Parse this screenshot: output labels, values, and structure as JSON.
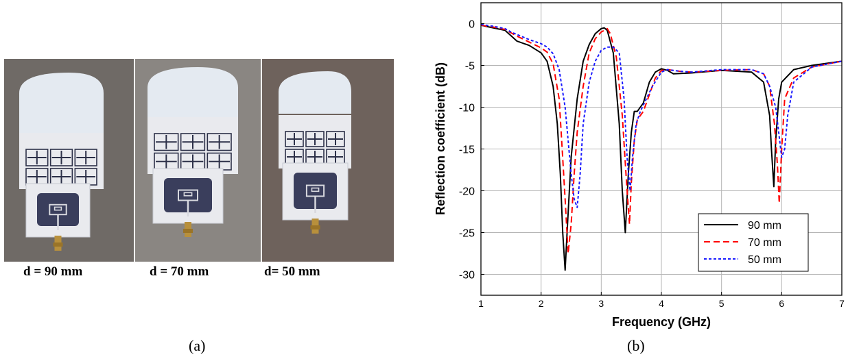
{
  "panel_a": {
    "label": "(a)",
    "photos": [
      {
        "caption": "d = 90 mm",
        "bg": "#6f6a66"
      },
      {
        "caption": "d = 70 mm",
        "bg": "#8a8682"
      },
      {
        "caption": "d= 50 mm",
        "bg": "#6e625c"
      }
    ],
    "colors": {
      "foam": "#e4eaf1",
      "substrate": "#e9eaee",
      "trace": "#2c3048",
      "patch": "#3a3e5c",
      "connector": "#b8903c"
    }
  },
  "panel_b": {
    "label": "(b)"
  },
  "chart_data": {
    "type": "line",
    "title": "",
    "xlabel": "Frequency (GHz)",
    "ylabel": "Reflection coefficient (dB)",
    "xlim": [
      1,
      7
    ],
    "ylim": [
      -32.5,
      2.5
    ],
    "xticks": [
      1,
      2,
      3,
      4,
      5,
      6,
      7
    ],
    "yticks": [
      0,
      -5,
      -10,
      -15,
      -20,
      -25,
      -30
    ],
    "xtick_labels": [
      "1",
      "2",
      "3",
      "4",
      "5",
      "6",
      "7"
    ],
    "ytick_labels": [
      "0",
      "-5",
      "-10",
      "-15",
      "-20",
      "-25",
      "-30"
    ],
    "grid": true,
    "legend_position": "bottom-right",
    "series": [
      {
        "name": "90 mm",
        "color": "#000000",
        "dash": "solid",
        "x": [
          1.0,
          1.2,
          1.4,
          1.6,
          1.8,
          2.0,
          2.1,
          2.2,
          2.27,
          2.32,
          2.36,
          2.4,
          2.44,
          2.5,
          2.6,
          2.7,
          2.8,
          2.9,
          3.0,
          3.05,
          3.1,
          3.2,
          3.3,
          3.35,
          3.4,
          3.45,
          3.5,
          3.55,
          3.6,
          3.7,
          3.8,
          3.9,
          4.0,
          4.1,
          4.2,
          4.5,
          5.0,
          5.5,
          5.7,
          5.8,
          5.83,
          5.87,
          5.9,
          5.95,
          6.0,
          6.2,
          6.5,
          7.0
        ],
        "y": [
          -0.2,
          -0.5,
          -0.8,
          -2.1,
          -2.6,
          -3.5,
          -4.5,
          -7.5,
          -12.0,
          -18.0,
          -25.0,
          -29.5,
          -24.0,
          -16.0,
          -9.0,
          -4.5,
          -2.5,
          -1.2,
          -0.6,
          -0.5,
          -0.8,
          -3.5,
          -12.0,
          -20.0,
          -25.0,
          -18.0,
          -13.0,
          -10.5,
          -10.5,
          -9.5,
          -7.0,
          -5.8,
          -5.4,
          -5.6,
          -6.0,
          -5.9,
          -5.6,
          -5.8,
          -7.0,
          -11.0,
          -15.0,
          -19.5,
          -14.0,
          -9.0,
          -7.0,
          -5.5,
          -5.0,
          -4.5
        ]
      },
      {
        "name": "70 mm",
        "color": "#ff0000",
        "dash": "long",
        "x": [
          1.0,
          1.2,
          1.4,
          1.6,
          1.8,
          2.0,
          2.1,
          2.2,
          2.3,
          2.35,
          2.4,
          2.45,
          2.5,
          2.55,
          2.6,
          2.7,
          2.8,
          2.9,
          3.0,
          3.1,
          3.15,
          3.25,
          3.35,
          3.42,
          3.47,
          3.5,
          3.55,
          3.6,
          3.7,
          3.8,
          3.9,
          4.0,
          4.1,
          4.3,
          4.5,
          5.0,
          5.5,
          5.7,
          5.8,
          5.88,
          5.93,
          5.96,
          6.0,
          6.05,
          6.2,
          6.5,
          7.0
        ],
        "y": [
          -0.2,
          -0.4,
          -0.7,
          -1.5,
          -2.2,
          -2.9,
          -3.4,
          -4.8,
          -9.0,
          -15.0,
          -21.0,
          -27.5,
          -24.0,
          -18.0,
          -13.0,
          -7.5,
          -3.5,
          -1.8,
          -1.0,
          -0.6,
          -1.2,
          -4.0,
          -11.0,
          -19.0,
          -24.0,
          -19.0,
          -14.0,
          -11.5,
          -10.5,
          -8.5,
          -6.5,
          -5.6,
          -5.5,
          -5.7,
          -5.8,
          -5.6,
          -5.5,
          -6.0,
          -7.5,
          -12.0,
          -17.0,
          -21.5,
          -15.0,
          -9.0,
          -6.5,
          -5.2,
          -4.5
        ]
      },
      {
        "name": "50 mm",
        "color": "#1a1aff",
        "dash": "short",
        "x": [
          1.0,
          1.2,
          1.4,
          1.5,
          1.6,
          1.8,
          2.0,
          2.1,
          2.2,
          2.3,
          2.4,
          2.45,
          2.5,
          2.55,
          2.6,
          2.65,
          2.7,
          2.8,
          2.9,
          3.0,
          3.1,
          3.2,
          3.3,
          3.38,
          3.43,
          3.48,
          3.52,
          3.58,
          3.65,
          3.75,
          3.85,
          4.0,
          4.1,
          4.3,
          4.5,
          5.0,
          5.5,
          5.7,
          5.8,
          5.9,
          5.95,
          6.0,
          6.05,
          6.1,
          6.2,
          6.5,
          7.0
        ],
        "y": [
          -0.1,
          -0.3,
          -0.6,
          -1.0,
          -1.3,
          -1.9,
          -2.4,
          -2.8,
          -3.6,
          -5.5,
          -10.0,
          -14.0,
          -18.0,
          -21.0,
          -22.0,
          -18.0,
          -12.0,
          -7.0,
          -4.5,
          -3.2,
          -2.8,
          -2.8,
          -3.5,
          -9.0,
          -16.0,
          -20.0,
          -16.0,
          -12.0,
          -10.5,
          -9.0,
          -7.5,
          -5.8,
          -5.5,
          -5.7,
          -5.8,
          -5.5,
          -5.5,
          -6.0,
          -7.5,
          -10.0,
          -13.0,
          -16.0,
          -15.0,
          -11.0,
          -7.0,
          -5.2,
          -4.5
        ]
      }
    ]
  }
}
